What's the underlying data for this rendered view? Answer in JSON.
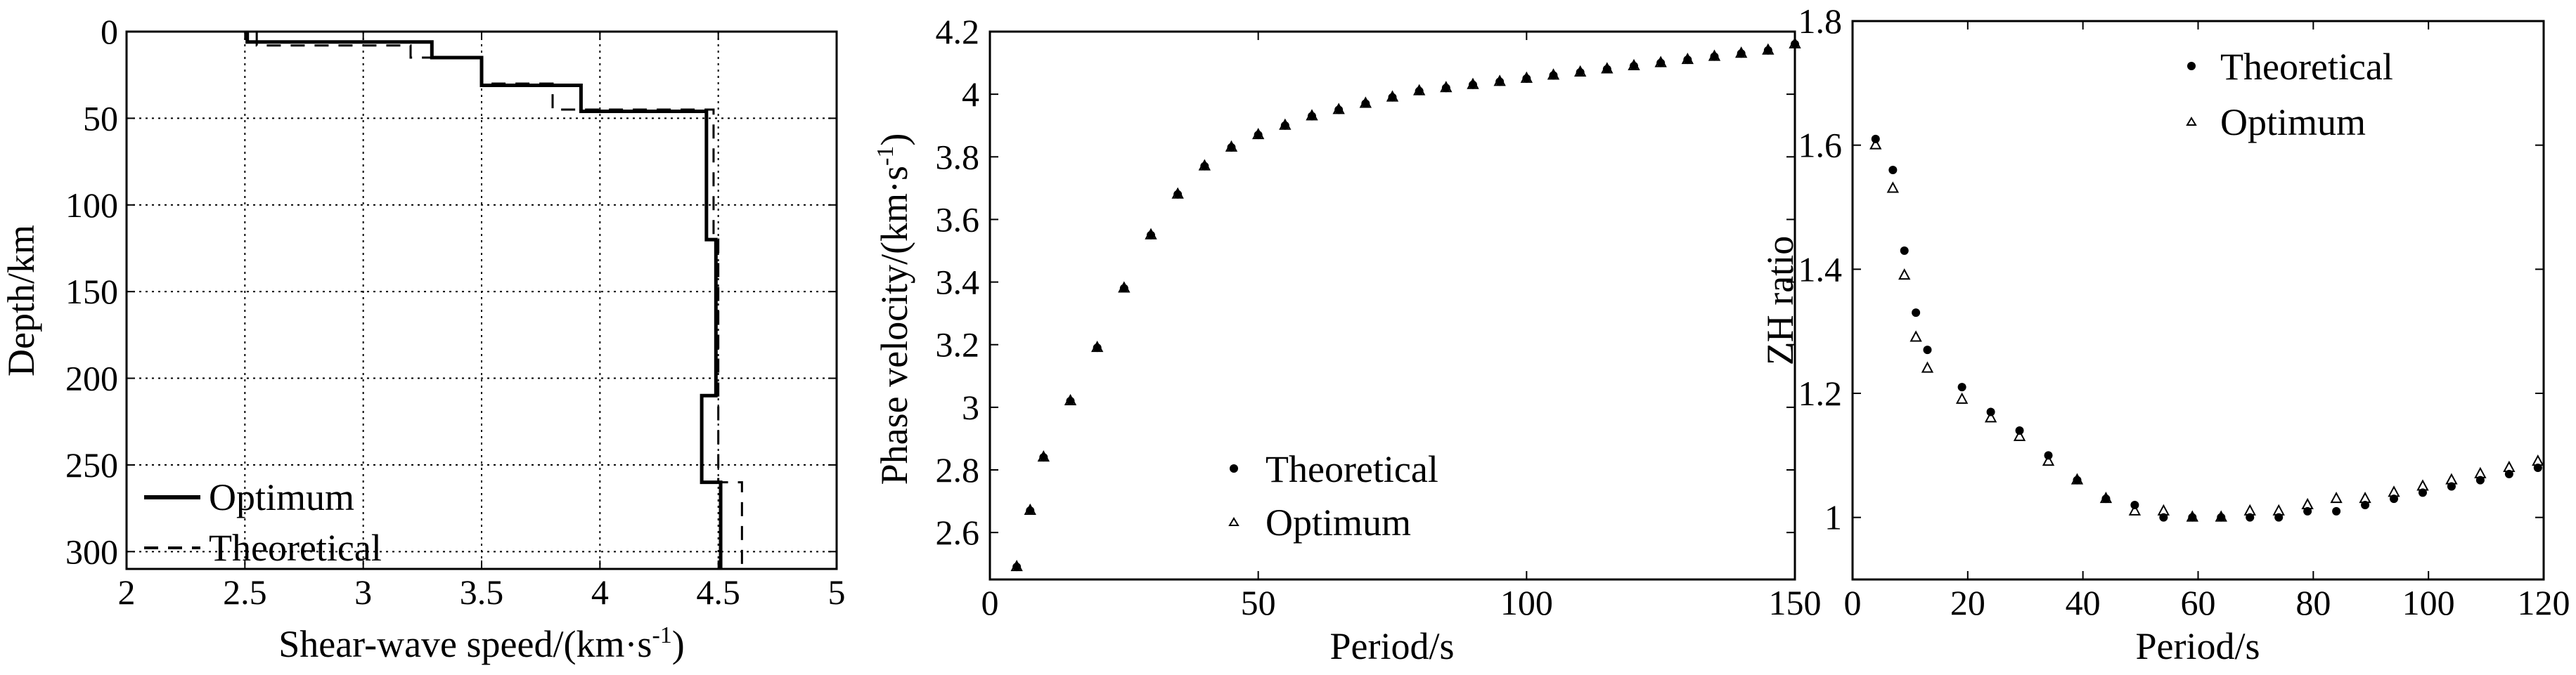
{
  "colors": {
    "ink": "#000000",
    "grid": "#000000",
    "background": "#ffffff"
  },
  "chart_data": [
    {
      "id": "velocity-profile",
      "type": "line",
      "xlabel": "Shear-wave speed/(km·s",
      "xlabel_sup": "-1",
      "xlabel_end": ")",
      "ylabel": "Depth/km",
      "xlim": [
        2,
        5
      ],
      "ylim": [
        0,
        310
      ],
      "y_inverted": true,
      "xticks": [
        2,
        2.5,
        3,
        3.5,
        4,
        4.5,
        5
      ],
      "xtick_labels": [
        "2",
        "2.5",
        "3",
        "3.5",
        "4",
        "4.5",
        "5"
      ],
      "yticks": [
        0,
        50,
        100,
        150,
        200,
        250,
        300
      ],
      "ytick_labels": [
        "0",
        "50",
        "100",
        "150",
        "200",
        "250",
        "300"
      ],
      "grid": true,
      "legend_position": "bottom-left",
      "series": [
        {
          "name": "Optimum",
          "style": "solid",
          "steps": [
            {
              "vs": 2.51,
              "top": 0,
              "bottom": 6
            },
            {
              "vs": 3.29,
              "top": 6,
              "bottom": 15
            },
            {
              "vs": 3.5,
              "top": 15,
              "bottom": 31
            },
            {
              "vs": 3.92,
              "top": 31,
              "bottom": 46
            },
            {
              "vs": 4.45,
              "top": 46,
              "bottom": 120
            },
            {
              "vs": 4.49,
              "top": 120,
              "bottom": 210
            },
            {
              "vs": 4.43,
              "top": 210,
              "bottom": 260
            },
            {
              "vs": 4.51,
              "top": 260,
              "bottom": 310
            }
          ]
        },
        {
          "name": "Theoretical",
          "style": "dashed",
          "steps": [
            {
              "vs": 2.55,
              "top": 0,
              "bottom": 8
            },
            {
              "vs": 3.2,
              "top": 8,
              "bottom": 15
            },
            {
              "vs": 3.5,
              "top": 15,
              "bottom": 30
            },
            {
              "vs": 3.8,
              "top": 30,
              "bottom": 45
            },
            {
              "vs": 4.48,
              "top": 45,
              "bottom": 120
            },
            {
              "vs": 4.5,
              "top": 120,
              "bottom": 260
            },
            {
              "vs": 4.6,
              "top": 260,
              "bottom": 310
            }
          ]
        }
      ]
    },
    {
      "id": "phase-velocity",
      "type": "scatter",
      "xlabel": "Period/s",
      "ylabel": "Phase velocity/(km·s",
      "ylabel_sup": "-1",
      "ylabel_end": ")",
      "xlim": [
        0,
        150
      ],
      "ylim": [
        2.45,
        4.2
      ],
      "xticks": [
        0,
        50,
        100,
        150
      ],
      "xtick_labels": [
        "0",
        "50",
        "100",
        "150"
      ],
      "yticks": [
        2.6,
        2.8,
        3.0,
        3.2,
        3.4,
        3.6,
        3.8,
        4.0,
        4.2
      ],
      "ytick_labels": [
        "2.6",
        "2.8",
        "3",
        "3.2",
        "3.4",
        "3.6",
        "3.8",
        "4",
        "4.2"
      ],
      "grid": false,
      "legend_position": "bottom-right",
      "x": [
        5,
        7.5,
        10,
        15,
        20,
        25,
        30,
        35,
        40,
        45,
        50,
        55,
        60,
        65,
        70,
        75,
        80,
        85,
        90,
        95,
        100,
        105,
        110,
        115,
        120,
        125,
        130,
        135,
        140,
        145,
        150
      ],
      "series": [
        {
          "name": "Theoretical",
          "marker": "dot",
          "values": [
            2.49,
            2.67,
            2.84,
            3.02,
            3.19,
            3.38,
            3.55,
            3.68,
            3.77,
            3.83,
            3.87,
            3.9,
            3.93,
            3.95,
            3.97,
            3.99,
            4.01,
            4.02,
            4.03,
            4.04,
            4.05,
            4.06,
            4.07,
            4.08,
            4.09,
            4.1,
            4.11,
            4.12,
            4.13,
            4.14,
            4.16
          ]
        },
        {
          "name": "Optimum",
          "marker": "triangle",
          "values": [
            2.49,
            2.67,
            2.84,
            3.02,
            3.19,
            3.38,
            3.55,
            3.68,
            3.77,
            3.83,
            3.87,
            3.9,
            3.93,
            3.95,
            3.97,
            3.99,
            4.01,
            4.02,
            4.03,
            4.04,
            4.05,
            4.06,
            4.07,
            4.08,
            4.09,
            4.1,
            4.11,
            4.12,
            4.13,
            4.14,
            4.16
          ]
        }
      ]
    },
    {
      "id": "zh-ratio",
      "type": "scatter",
      "xlabel": "Period/s",
      "ylabel": "ZH ratio",
      "xlim": [
        0,
        120
      ],
      "ylim": [
        0.9,
        1.8
      ],
      "xticks": [
        0,
        20,
        40,
        60,
        80,
        100,
        120
      ],
      "xtick_labels": [
        "0",
        "20",
        "40",
        "60",
        "80",
        "100",
        "120"
      ],
      "yticks": [
        1.0,
        1.2,
        1.4,
        1.6,
        1.8
      ],
      "ytick_labels": [
        "1",
        "1.2",
        "1.4",
        "1.6",
        "1.8"
      ],
      "grid": false,
      "legend_position": "top-center",
      "x": [
        4,
        7,
        9,
        11,
        13,
        19,
        24,
        29,
        34,
        39,
        44,
        49,
        54,
        59,
        64,
        69,
        74,
        79,
        84,
        89,
        94,
        99,
        104,
        109,
        114,
        119
      ],
      "series": [
        {
          "name": "Theoretical",
          "marker": "dot",
          "values": [
            1.61,
            1.56,
            1.43,
            1.33,
            1.27,
            1.21,
            1.17,
            1.14,
            1.1,
            1.06,
            1.03,
            1.02,
            1.0,
            1.0,
            1.0,
            1.0,
            1.0,
            1.01,
            1.01,
            1.02,
            1.03,
            1.04,
            1.05,
            1.06,
            1.07,
            1.08
          ]
        },
        {
          "name": "Optimum",
          "marker": "triangle",
          "values": [
            1.6,
            1.53,
            1.39,
            1.29,
            1.24,
            1.19,
            1.16,
            1.13,
            1.09,
            1.06,
            1.03,
            1.01,
            1.01,
            1.0,
            1.0,
            1.01,
            1.01,
            1.02,
            1.03,
            1.03,
            1.04,
            1.05,
            1.06,
            1.07,
            1.08,
            1.09
          ]
        }
      ]
    }
  ]
}
